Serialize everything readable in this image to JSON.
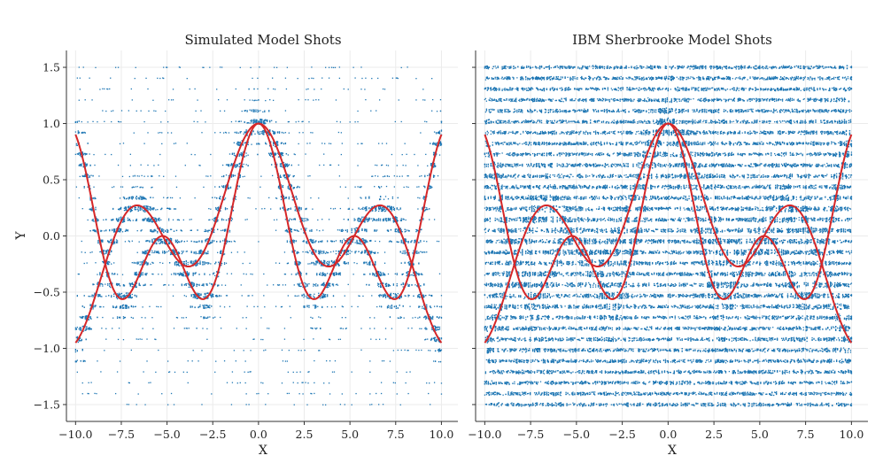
{
  "chart_data": [
    {
      "type": "scatter",
      "title": "Simulated Model Shots",
      "xlabel": "X",
      "ylabel": "Y",
      "xlim": [
        -10.5,
        10.9
      ],
      "ylim": [
        -1.65,
        1.65
      ],
      "xticks": [
        -10.0,
        -7.5,
        -5.0,
        -2.5,
        0.0,
        2.5,
        5.0,
        7.5,
        10.0
      ],
      "xtick_labels": [
        "−10.0",
        "−7.5",
        "−5.0",
        "−2.5",
        "0.0",
        "2.5",
        "5.0",
        "7.5",
        "10.0"
      ],
      "yticks": [
        1.5,
        1.0,
        0.5,
        0.0,
        -0.5,
        -1.0,
        -1.5
      ],
      "ytick_labels": [
        "1.5",
        "1.0",
        "0.5",
        "0.0",
        "−0.5",
        "−1.0",
        "−1.5"
      ],
      "grid": true,
      "scatter_style": "concentrated",
      "scatter_x_range": [
        -10,
        10
      ],
      "scatter_y_levels": 32,
      "scatter_y_range": [
        -1.5,
        1.5
      ],
      "series": [
        {
          "kind": "scatter",
          "color": "#1f77b4",
          "marker_size": 1
        },
        {
          "kind": "curve",
          "color": "#d62728",
          "x_range": [
            -10,
            10
          ],
          "formula": "y = cos(0.3x)*cos(0.9x)"
        },
        {
          "kind": "curve",
          "color": "#d62728",
          "x_range": [
            -10,
            10
          ],
          "formula": "y = cos(0.3x)*cos(0.6x)"
        }
      ]
    },
    {
      "type": "scatter",
      "title": "IBM Sherbrooke Model Shots",
      "xlabel": "X",
      "ylabel": "",
      "xlim": [
        -10.5,
        10.9
      ],
      "ylim": [
        -1.65,
        1.65
      ],
      "xticks": [
        -10.0,
        -7.5,
        -5.0,
        -2.5,
        0.0,
        2.5,
        5.0,
        7.5,
        10.0
      ],
      "xtick_labels": [
        "−10.0",
        "−7.5",
        "−5.0",
        "−2.5",
        "0.0",
        "2.5",
        "5.0",
        "7.5",
        "10.0"
      ],
      "yticks": [
        1.5,
        1.0,
        0.5,
        0.0,
        -0.5,
        -1.0,
        -1.5
      ],
      "ytick_labels": [
        "",
        "",
        "",
        "",
        "",
        "",
        ""
      ],
      "grid": true,
      "scatter_style": "uniform",
      "scatter_x_range": [
        -10,
        10
      ],
      "scatter_y_levels": 32,
      "scatter_y_range": [
        -1.5,
        1.5
      ],
      "series": [
        {
          "kind": "scatter",
          "color": "#1f77b4",
          "marker_size": 1
        },
        {
          "kind": "curve",
          "color": "#d62728",
          "x_range": [
            -10,
            10
          ],
          "formula": "y = cos(0.3x)*cos(0.9x)"
        },
        {
          "kind": "curve",
          "color": "#d62728",
          "x_range": [
            -10,
            10
          ],
          "formula": "y = cos(0.3x)*cos(0.6x)"
        }
      ]
    }
  ]
}
